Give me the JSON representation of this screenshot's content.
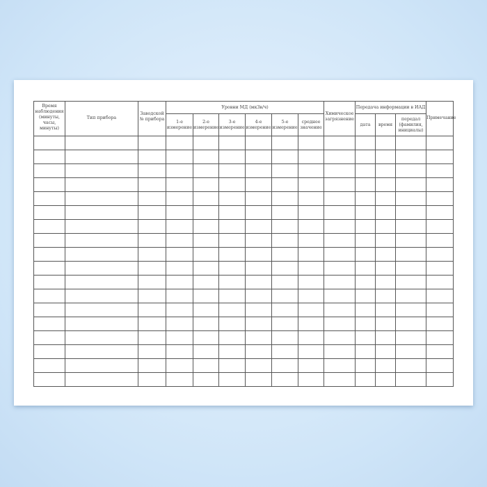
{
  "columns": {
    "time": "Время наблюдения (минуты, часы, минуты)",
    "device_type": "Тип прибора",
    "serial": "Заводской № прибора",
    "md_levels": "Уровни МД (мкЗв/ч)",
    "m1": "1-е измерение",
    "m2": "2-е измерение",
    "m3": "3-е измерение",
    "m4": "4-е измерение",
    "m5": "5-е измерение",
    "avg": "среднее значение",
    "chem": "Химическое загрязнение",
    "transfer": "Передача информации в ИАД",
    "date": "дата",
    "time2": "время",
    "sent_by": "передал (фамилия, инициалы)",
    "note": "Примечание"
  },
  "empty_rows": 18
}
